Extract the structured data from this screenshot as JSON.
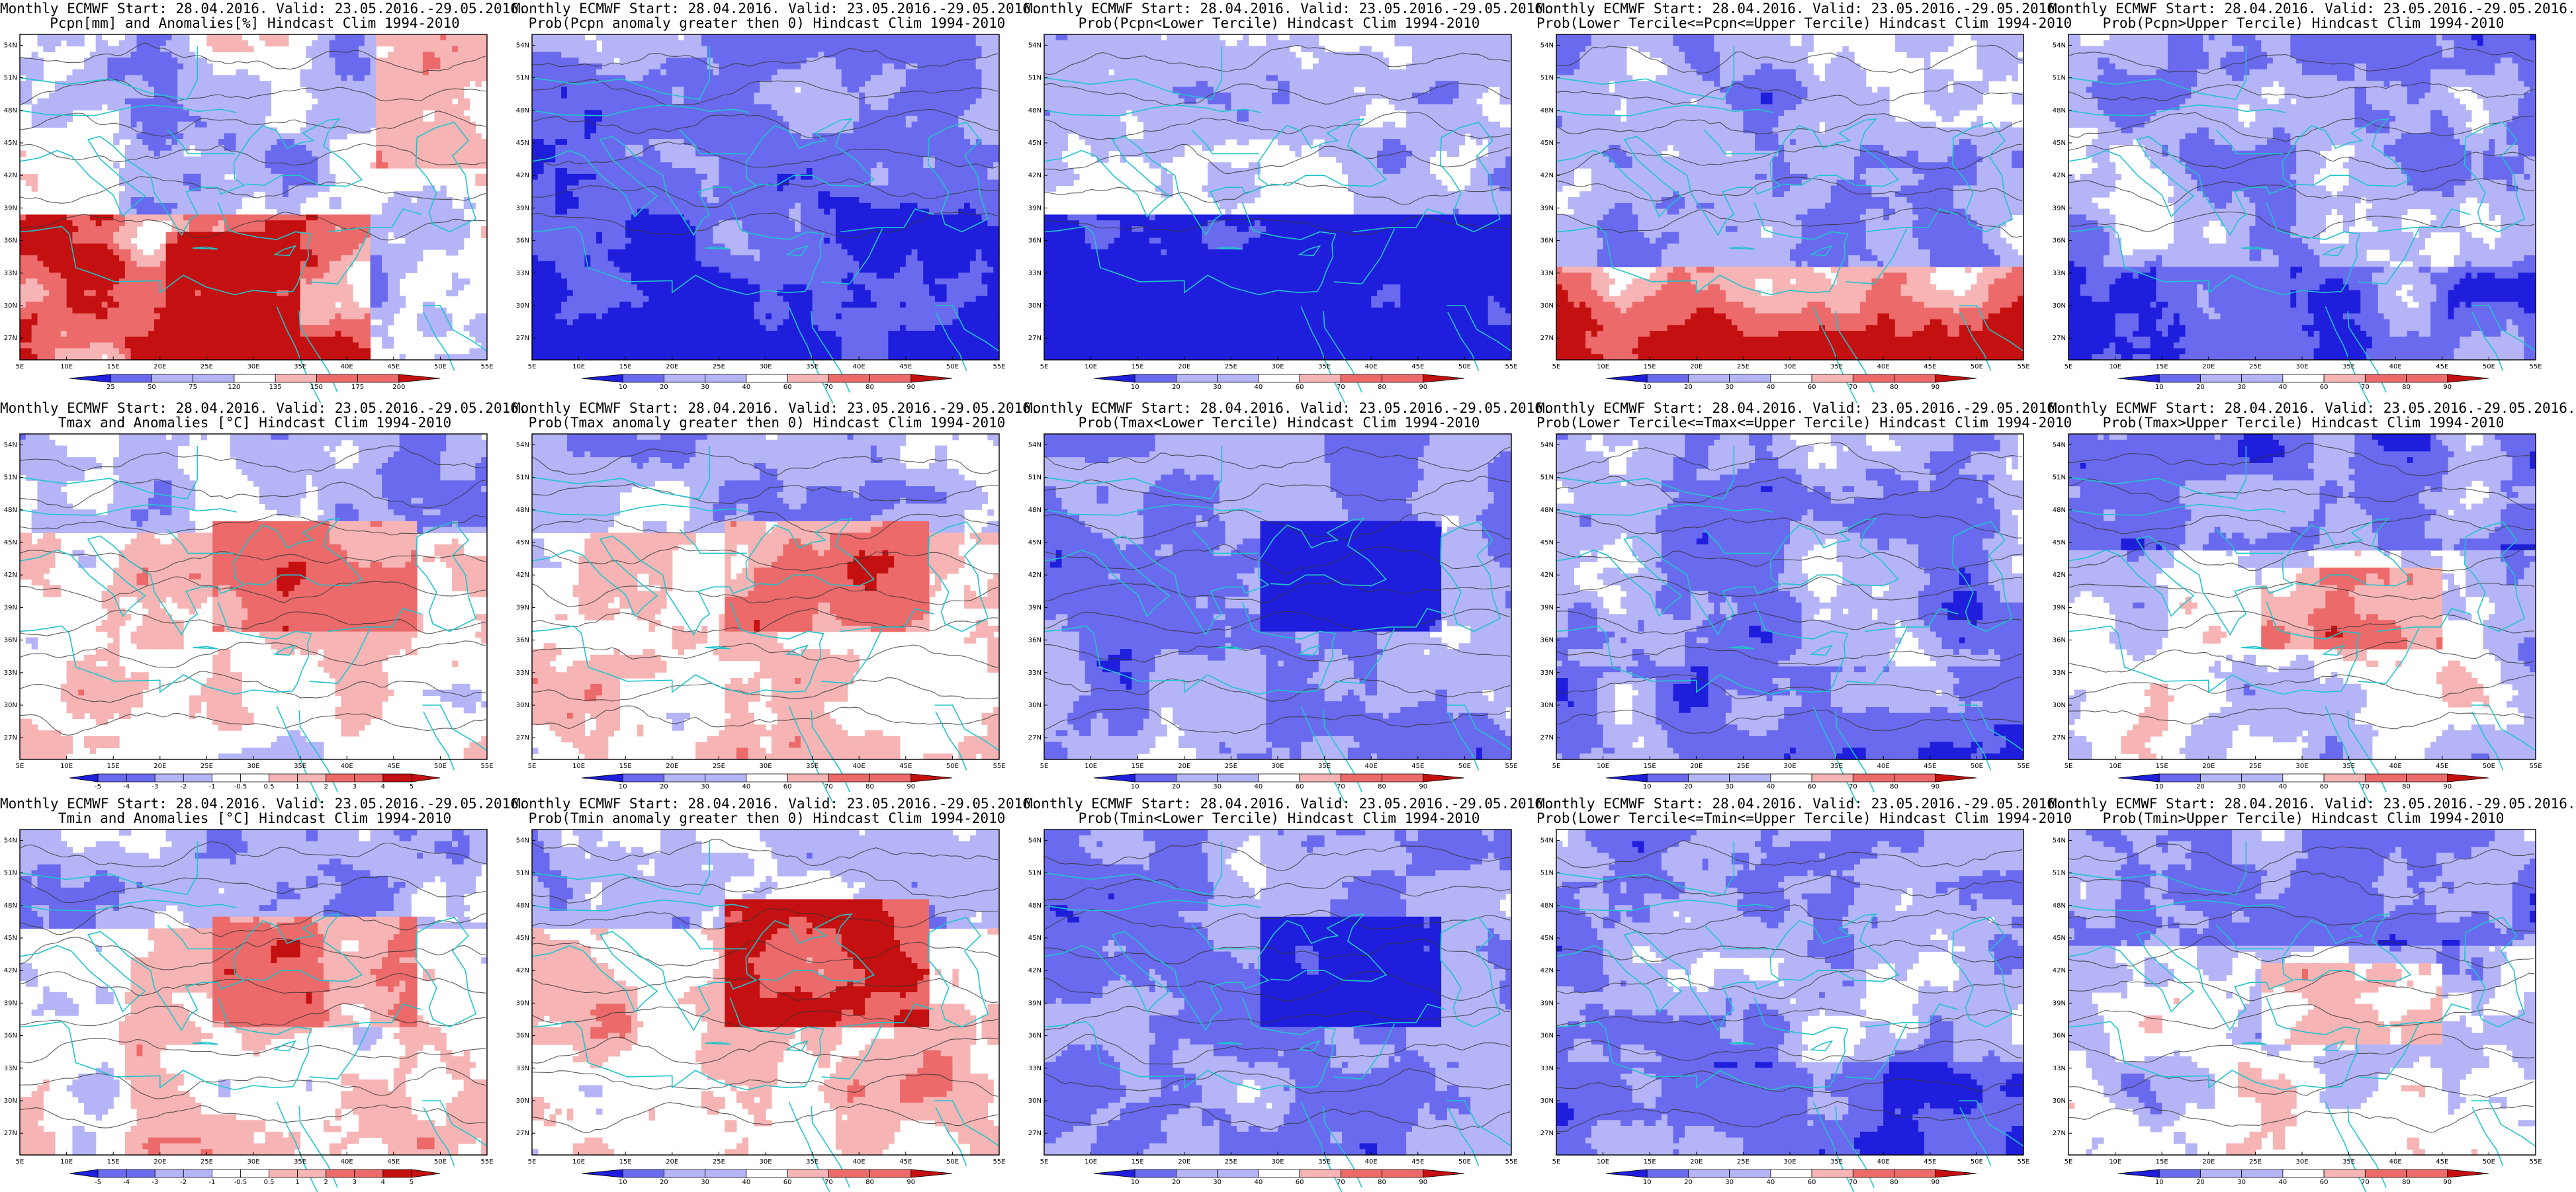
{
  "colors": {
    "deep_blue": "#1e1edc",
    "mid_blue": "#6a6aef",
    "light_blue": "#b4b4f7",
    "white": "#ffffff",
    "light_red": "#f6b4b4",
    "mid_red": "#ec6a6a",
    "deep_red": "#c41010",
    "coast": "#21c4cc",
    "contour": "#333333"
  },
  "axes": {
    "lat_labels": [
      "54N",
      "51N",
      "48N",
      "45N",
      "42N",
      "39N",
      "36N",
      "33N",
      "30N",
      "27N"
    ],
    "lon_labels": [
      "5E",
      "10E",
      "15E",
      "20E",
      "25E",
      "30E",
      "35E",
      "40E",
      "45E",
      "50E",
      "55E"
    ]
  },
  "panels": [
    {
      "title_1": "Monthly ECMWF Start: 28.04.2016. Valid: 23.05.2016.-29.05.2016.",
      "title_2": "Pcpn[mm] and Anomalies[%] Hindcast Clim 1994-2010",
      "colorbar": [
        "25",
        "50",
        "75",
        "120",
        "135",
        "150",
        "175",
        "200"
      ]
    },
    {
      "title_1": "Monthly ECMWF Start: 28.04.2016. Valid: 23.05.2016.-29.05.2016.",
      "title_2": "Prob(Pcpn anomaly greater then 0) Hindcast Clim 1994-2010",
      "colorbar": [
        "10",
        "20",
        "30",
        "40",
        "60",
        "70",
        "80",
        "90"
      ]
    },
    {
      "title_1": "Monthly ECMWF Start: 28.04.2016. Valid: 23.05.2016.-29.05.2016.",
      "title_2": "Prob(Pcpn<Lower Tercile) Hindcast Clim 1994-2010",
      "colorbar": [
        "10",
        "20",
        "30",
        "40",
        "60",
        "70",
        "80",
        "90"
      ]
    },
    {
      "title_1": "Monthly ECMWF Start: 28.04.2016. Valid: 23.05.2016.-29.05.2016.",
      "title_2": "Prob(Lower Tercile<=Pcpn<=Upper Tercile) Hindcast Clim 1994-2010",
      "colorbar": [
        "10",
        "20",
        "30",
        "40",
        "60",
        "70",
        "80",
        "90"
      ]
    },
    {
      "title_1": "Monthly ECMWF Start: 28.04.2016. Valid: 23.05.2016.-29.05.2016.",
      "title_2": "Prob(Pcpn>Upper Tercile) Hindcast Clim 1994-2010",
      "colorbar": [
        "10",
        "20",
        "30",
        "40",
        "60",
        "70",
        "80",
        "90"
      ]
    },
    {
      "title_1": "Monthly ECMWF Start: 28.04.2016. Valid: 23.05.2016.-29.05.2016.",
      "title_2": "Tmax and Anomalies [°C] Hindcast Clim 1994-2010",
      "colorbar": [
        "-5",
        "-4",
        "-3",
        "-2",
        "-1",
        "-0.5",
        "0.5",
        "1",
        "2",
        "3",
        "4",
        "5"
      ]
    },
    {
      "title_1": "Monthly ECMWF Start: 28.04.2016. Valid: 23.05.2016.-29.05.2016.",
      "title_2": "Prob(Tmax anomaly greater then 0) Hindcast Clim 1994-2010",
      "colorbar": [
        "10",
        "20",
        "30",
        "40",
        "60",
        "70",
        "80",
        "90"
      ]
    },
    {
      "title_1": "Monthly ECMWF Start: 28.04.2016. Valid: 23.05.2016.-29.05.2016.",
      "title_2": "Prob(Tmax<Lower Tercile) Hindcast Clim 1994-2010",
      "colorbar": [
        "10",
        "20",
        "30",
        "40",
        "60",
        "70",
        "80",
        "90"
      ]
    },
    {
      "title_1": "Monthly ECMWF Start: 28.04.2016. Valid: 23.05.2016.-29.05.2016.",
      "title_2": "Prob(Lower Tercile<=Tmax<=Upper Tercile) Hindcast Clim 1994-2010",
      "colorbar": [
        "10",
        "20",
        "30",
        "40",
        "60",
        "70",
        "80",
        "90"
      ]
    },
    {
      "title_1": "Monthly ECMWF Start: 28.04.2016. Valid: 23.05.2016.-29.05.2016.",
      "title_2": "Prob(Tmax>Upper Tercile) Hindcast Clim 1994-2010",
      "colorbar": [
        "10",
        "20",
        "30",
        "40",
        "60",
        "70",
        "80",
        "90"
      ]
    },
    {
      "title_1": "Monthly ECMWF Start: 28.04.2016. Valid: 23.05.2016.-29.05.2016.",
      "title_2": "Tmin and Anomalies [°C] Hindcast Clim 1994-2010",
      "colorbar": [
        "-5",
        "-4",
        "-3",
        "-2",
        "-1",
        "-0.5",
        "0.5",
        "1",
        "2",
        "3",
        "4",
        "5"
      ]
    },
    {
      "title_1": "Monthly ECMWF Start: 28.04.2016. Valid: 23.05.2016.-29.05.2016.",
      "title_2": "Prob(Tmin anomaly greater then 0) Hindcast Clim 1994-2010",
      "colorbar": [
        "10",
        "20",
        "30",
        "40",
        "60",
        "70",
        "80",
        "90"
      ]
    },
    {
      "title_1": "Monthly ECMWF Start: 28.04.2016. Valid: 23.05.2016.-29.05.2016.",
      "title_2": "Prob(Tmin<Lower Tercile) Hindcast Clim 1994-2010",
      "colorbar": [
        "10",
        "20",
        "30",
        "40",
        "60",
        "70",
        "80",
        "90"
      ]
    },
    {
      "title_1": "Monthly ECMWF Start: 28.04.2016. Valid: 23.05.2016.-29.05.2016.",
      "title_2": "Prob(Lower Tercile<=Tmin<=Upper Tercile) Hindcast Clim 1994-2010",
      "colorbar": [
        "10",
        "20",
        "30",
        "40",
        "60",
        "70",
        "80",
        "90"
      ]
    },
    {
      "title_1": "Monthly ECMWF Start: 28.04.2016. Valid: 23.05.2016.-29.05.2016.",
      "title_2": "Prob(Tmin>Upper Tercile) Hindcast Clim 1994-2010",
      "colorbar": [
        "10",
        "20",
        "30",
        "40",
        "60",
        "70",
        "80",
        "90"
      ]
    }
  ]
}
